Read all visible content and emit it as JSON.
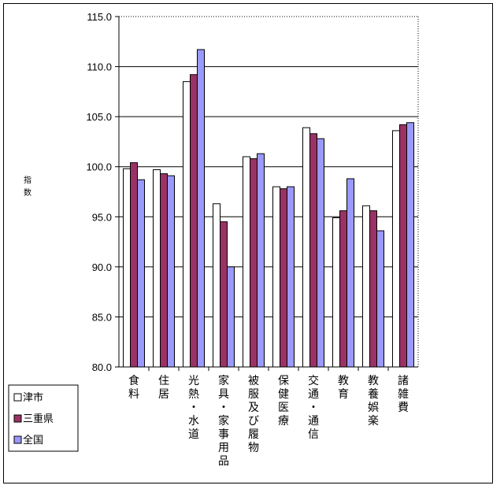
{
  "chart_data": {
    "type": "bar",
    "title": "",
    "ylabel_chars": [
      "指",
      "数"
    ],
    "ylim": [
      80,
      115
    ],
    "yticks": [
      "80.0",
      "85.0",
      "90.0",
      "95.0",
      "100.0",
      "105.0",
      "110.0",
      "115.0"
    ],
    "grid": true,
    "legend_position": "bottom-left",
    "categories": [
      [
        "食",
        "料"
      ],
      [
        "住",
        "居"
      ],
      [
        "光",
        "熱",
        "・",
        "水",
        "道"
      ],
      [
        "家",
        "具",
        "・",
        "家",
        "事",
        "用",
        "品"
      ],
      [
        "被",
        "服",
        "及",
        "び",
        "履",
        "物"
      ],
      [
        "保",
        "健",
        "医",
        "療"
      ],
      [
        "交",
        "通",
        "・",
        "通",
        "信"
      ],
      [
        "教",
        "育"
      ],
      [
        "教",
        "養",
        "娯",
        "楽"
      ],
      [
        "諸",
        "雑",
        "費"
      ]
    ],
    "series": [
      {
        "name": "津市",
        "color": "#ffffff",
        "values": [
          99.8,
          99.7,
          108.5,
          96.3,
          101.0,
          98.0,
          103.9,
          94.9,
          96.1,
          103.6
        ]
      },
      {
        "name": "三重県",
        "color": "#993366",
        "values": [
          100.4,
          99.3,
          109.2,
          94.5,
          100.8,
          97.8,
          103.3,
          95.6,
          95.6,
          104.2
        ]
      },
      {
        "name": "全国",
        "color": "#9999ff",
        "values": [
          98.7,
          99.1,
          111.7,
          90.0,
          101.3,
          98.0,
          102.8,
          98.8,
          93.6,
          104.4
        ]
      }
    ]
  }
}
